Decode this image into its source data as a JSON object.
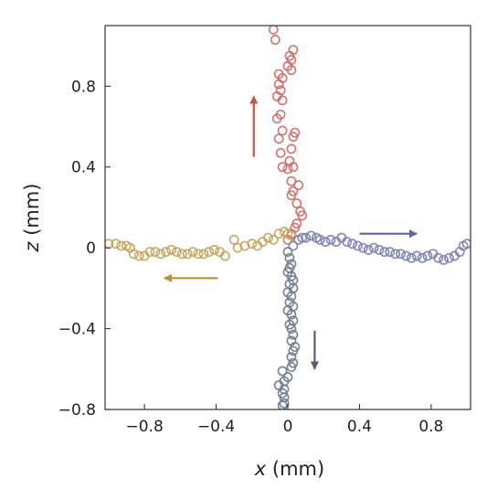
{
  "chart_data": {
    "type": "scatter",
    "title": "",
    "xlabel": {
      "var": "x",
      "unit": " (mm)"
    },
    "ylabel": {
      "var": "z",
      "unit": " (mm)"
    },
    "xlim": [
      -1.02,
      1.02
    ],
    "ylim": [
      -0.8,
      1.1
    ],
    "xticks": [
      -0.8,
      -0.4,
      0,
      0.4,
      0.8
    ],
    "xtick_labels": [
      "−0.8",
      "−0.4",
      "0",
      "0.4",
      "0.8"
    ],
    "yticks": [
      -0.8,
      -0.4,
      0,
      0.4,
      0.8
    ],
    "ytick_labels": [
      "−0.8",
      "−0.4",
      "0",
      "0.4",
      "0.8"
    ],
    "grid": false,
    "marker": "open-circle",
    "series": [
      {
        "color": "#cd6b66",
        "points": [
          [
            0.0,
            0.04
          ],
          [
            0.02,
            0.07
          ],
          [
            0.04,
            0.1
          ],
          [
            0.05,
            0.12
          ],
          [
            0.08,
            0.16
          ],
          [
            0.07,
            0.18
          ],
          [
            0.05,
            0.22
          ],
          [
            0.02,
            0.26
          ],
          [
            0.03,
            0.28
          ],
          [
            0.06,
            0.31
          ],
          [
            0.02,
            0.33
          ],
          [
            0.0,
            0.39
          ],
          [
            0.03,
            0.4
          ],
          [
            -0.03,
            0.4
          ],
          [
            0.01,
            0.43
          ],
          [
            -0.04,
            0.47
          ],
          [
            0.02,
            0.49
          ],
          [
            0.03,
            0.55
          ],
          [
            0.04,
            0.57
          ],
          [
            -0.05,
            0.54
          ],
          [
            -0.03,
            0.58
          ],
          [
            -0.06,
            0.64
          ],
          [
            -0.04,
            0.66
          ],
          [
            -0.03,
            0.73
          ],
          [
            -0.06,
            0.75
          ],
          [
            -0.04,
            0.78
          ],
          [
            -0.05,
            0.81
          ],
          [
            -0.03,
            0.84
          ],
          [
            -0.05,
            0.86
          ],
          [
            0.02,
            0.88
          ],
          [
            0.0,
            0.9
          ],
          [
            0.02,
            0.93
          ],
          [
            0.01,
            0.95
          ],
          [
            0.03,
            0.98
          ],
          [
            -0.07,
            1.03
          ],
          [
            -0.08,
            1.08
          ]
        ]
      },
      {
        "color": "#c3a35b",
        "points": [
          [
            -1.0,
            0.02
          ],
          [
            -0.96,
            0.02
          ],
          [
            -0.93,
            0.01
          ],
          [
            -0.9,
            0.01
          ],
          [
            -0.88,
            0.0
          ],
          [
            -0.86,
            -0.03
          ],
          [
            -0.83,
            -0.04
          ],
          [
            -0.8,
            -0.04
          ],
          [
            -0.77,
            -0.02
          ],
          [
            -0.74,
            -0.02
          ],
          [
            -0.71,
            -0.03
          ],
          [
            -0.68,
            -0.02
          ],
          [
            -0.65,
            -0.01
          ],
          [
            -0.62,
            -0.02
          ],
          [
            -0.59,
            -0.03
          ],
          [
            -0.56,
            -0.03
          ],
          [
            -0.53,
            -0.02
          ],
          [
            -0.5,
            -0.03
          ],
          [
            -0.47,
            -0.03
          ],
          [
            -0.44,
            -0.02
          ],
          [
            -0.41,
            -0.01
          ],
          [
            -0.38,
            -0.02
          ],
          [
            -0.35,
            -0.04
          ],
          [
            -0.3,
            0.04
          ],
          [
            -0.28,
            0.0
          ],
          [
            -0.24,
            0.01
          ],
          [
            -0.2,
            0.02
          ],
          [
            -0.17,
            0.01
          ],
          [
            -0.14,
            0.03
          ],
          [
            -0.11,
            0.05
          ],
          [
            -0.08,
            0.04
          ],
          [
            -0.05,
            0.07
          ],
          [
            -0.02,
            0.08
          ],
          [
            0.0,
            0.07
          ],
          [
            0.02,
            0.06
          ]
        ]
      },
      {
        "color": "#7b7fb0",
        "points": [
          [
            0.03,
            0.01
          ],
          [
            0.06,
            0.04
          ],
          [
            0.08,
            0.05
          ],
          [
            0.1,
            0.05
          ],
          [
            0.13,
            0.06
          ],
          [
            0.16,
            0.05
          ],
          [
            0.18,
            0.04
          ],
          [
            0.21,
            0.03
          ],
          [
            0.24,
            0.04
          ],
          [
            0.27,
            0.03
          ],
          [
            0.3,
            0.05
          ],
          [
            0.33,
            0.03
          ],
          [
            0.36,
            0.02
          ],
          [
            0.39,
            0.01
          ],
          [
            0.42,
            0.0
          ],
          [
            0.45,
            -0.01
          ],
          [
            0.48,
            0.0
          ],
          [
            0.51,
            -0.01
          ],
          [
            0.54,
            -0.02
          ],
          [
            0.57,
            -0.02
          ],
          [
            0.6,
            -0.03
          ],
          [
            0.63,
            -0.03
          ],
          [
            0.66,
            -0.04
          ],
          [
            0.69,
            -0.05
          ],
          [
            0.72,
            -0.04
          ],
          [
            0.75,
            -0.05
          ],
          [
            0.78,
            -0.04
          ],
          [
            0.81,
            -0.03
          ],
          [
            0.84,
            -0.05
          ],
          [
            0.87,
            -0.06
          ],
          [
            0.9,
            -0.05
          ],
          [
            0.93,
            -0.04
          ],
          [
            0.96,
            -0.02
          ],
          [
            0.98,
            0.01
          ],
          [
            1.0,
            0.02
          ]
        ]
      },
      {
        "color": "#6e7a8a",
        "points": [
          [
            0.0,
            -0.02
          ],
          [
            0.01,
            -0.05
          ],
          [
            0.02,
            -0.08
          ],
          [
            0.01,
            -0.1
          ],
          [
            0.0,
            -0.12
          ],
          [
            0.02,
            -0.14
          ],
          [
            0.03,
            -0.16
          ],
          [
            0.01,
            -0.18
          ],
          [
            0.03,
            -0.2
          ],
          [
            0.0,
            -0.22
          ],
          [
            0.02,
            -0.24
          ],
          [
            0.01,
            -0.27
          ],
          [
            0.03,
            -0.29
          ],
          [
            0.0,
            -0.31
          ],
          [
            0.02,
            -0.33
          ],
          [
            0.03,
            -0.36
          ],
          [
            0.01,
            -0.38
          ],
          [
            0.02,
            -0.4
          ],
          [
            0.03,
            -0.43
          ],
          [
            0.02,
            -0.46
          ],
          [
            0.04,
            -0.49
          ],
          [
            0.03,
            -0.51
          ],
          [
            0.02,
            -0.54
          ],
          [
            0.03,
            -0.57
          ],
          [
            0.02,
            -0.59
          ],
          [
            -0.03,
            -0.61
          ],
          [
            0.0,
            -0.64
          ],
          [
            -0.02,
            -0.66
          ],
          [
            -0.05,
            -0.68
          ],
          [
            -0.02,
            -0.7
          ],
          [
            -0.03,
            -0.72
          ],
          [
            -0.02,
            -0.74
          ],
          [
            -0.02,
            -0.77
          ],
          [
            -0.03,
            -0.78
          ]
        ]
      }
    ],
    "arrows": [
      {
        "color": "#c9524d",
        "from": [
          -0.19,
          0.45
        ],
        "to": [
          -0.19,
          0.75
        ]
      },
      {
        "color": "#b8913d",
        "from": [
          -0.39,
          -0.15
        ],
        "to": [
          -0.69,
          -0.15
        ]
      },
      {
        "color": "#5f64a3",
        "from": [
          0.4,
          0.07
        ],
        "to": [
          0.72,
          0.07
        ]
      },
      {
        "color": "#55606e",
        "from": [
          0.15,
          -0.41
        ],
        "to": [
          0.15,
          -0.6
        ]
      }
    ]
  }
}
